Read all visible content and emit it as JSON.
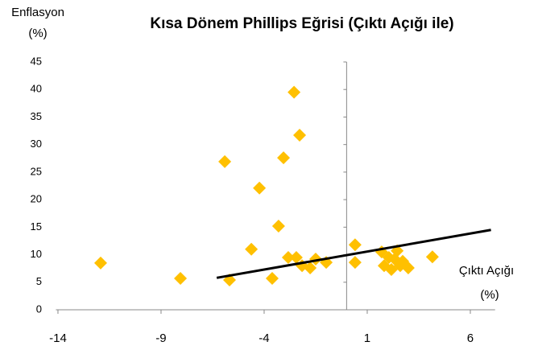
{
  "chart_data": {
    "type": "scatter",
    "title": "Kısa Dönem Phillips Eğrisi (Çıktı Açığı ile)",
    "y_label": [
      "Enflasyon",
      "(%)"
    ],
    "x_label": [
      "Çıktı Açığı",
      "(%)"
    ],
    "x": [
      -11.93,
      -8.06,
      -5.91,
      -5.68,
      -4.62,
      -4.23,
      -3.61,
      -3.3,
      -3.06,
      -2.83,
      -2.55,
      -2.44,
      -2.28,
      -2.16,
      -1.77,
      -1.5,
      -0.99,
      0.41,
      0.41,
      1.7,
      1.82,
      2.05,
      2.17,
      2.33,
      2.45,
      2.6,
      2.72,
      2.99,
      4.16
    ],
    "y": [
      8.5,
      5.7,
      26.9,
      5.4,
      11.0,
      22.1,
      5.7,
      15.2,
      27.6,
      9.5,
      39.5,
      9.5,
      31.7,
      8.0,
      7.6,
      9.2,
      8.6,
      11.8,
      8.6,
      10.5,
      8.0,
      9.5,
      7.3,
      9.2,
      10.7,
      8.0,
      8.8,
      7.6,
      9.6
    ],
    "color": "#FFC000",
    "trendline": {
      "x": [
        -6.3,
        7.0
      ],
      "y": [
        5.8,
        14.5
      ],
      "color": "#000000"
    },
    "xlim": [
      -14.1,
      7.2
    ],
    "xticks": [
      -14,
      -9,
      -4,
      1,
      6
    ],
    "ylim": [
      0,
      45
    ],
    "yticks": [
      0,
      5,
      10,
      15,
      20,
      25,
      30,
      35,
      40,
      45
    ],
    "y_axis_at": 0
  }
}
